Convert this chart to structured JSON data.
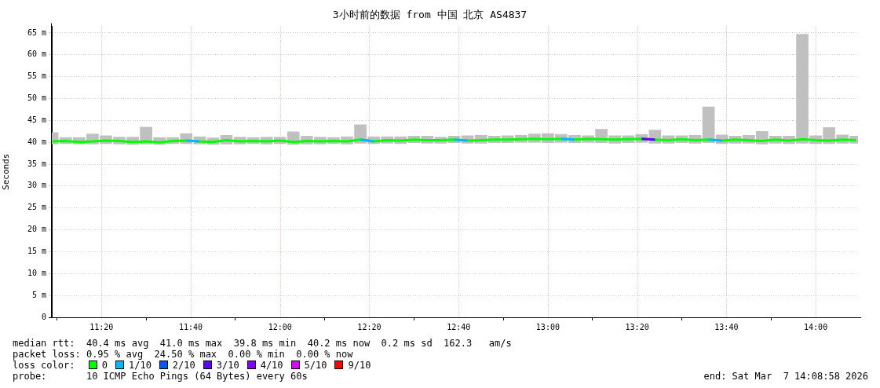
{
  "chart_data": {
    "type": "line",
    "title": "3小时前的数据 from 中国 北京 AS4837",
    "ylabel": "Seconds",
    "xlim": [
      11.148,
      14.158
    ],
    "xticks": [
      {
        "value": 11.3333,
        "label": "11:20"
      },
      {
        "value": 11.6667,
        "label": "11:40"
      },
      {
        "value": 12,
        "label": "12:00"
      },
      {
        "value": 12.3333,
        "label": "12:20"
      },
      {
        "value": 12.6667,
        "label": "12:40"
      },
      {
        "value": 13,
        "label": "13:00"
      },
      {
        "value": 13.3333,
        "label": "13:20"
      },
      {
        "value": 13.6667,
        "label": "13:40"
      },
      {
        "value": 14,
        "label": "14:00"
      }
    ],
    "ylim": [
      0,
      66.5
    ],
    "yticks": [
      {
        "value": 0,
        "label": "0"
      },
      {
        "value": 5,
        "label": "5 m"
      },
      {
        "value": 10,
        "label": "10 m"
      },
      {
        "value": 15,
        "label": "15 m"
      },
      {
        "value": 20,
        "label": "20 m"
      },
      {
        "value": 25,
        "label": "25 m"
      },
      {
        "value": 30,
        "label": "30 m"
      },
      {
        "value": 35,
        "label": "35 m"
      },
      {
        "value": 40,
        "label": "40 m"
      },
      {
        "value": 45,
        "label": "45 m"
      },
      {
        "value": 50,
        "label": "50 m"
      },
      {
        "value": 55,
        "label": "55 m"
      },
      {
        "value": 60,
        "label": "60 m"
      },
      {
        "value": 65,
        "label": "65 m"
      }
    ],
    "x": [
      11.15,
      11.2,
      11.25,
      11.3,
      11.35,
      11.4,
      11.45,
      11.5,
      11.55,
      11.6,
      11.65,
      11.7,
      11.75,
      11.8,
      11.85,
      11.9,
      11.95,
      12,
      12.05,
      12.1,
      12.15,
      12.2,
      12.25,
      12.3,
      12.35,
      12.4,
      12.45,
      12.5,
      12.55,
      12.6,
      12.65,
      12.7,
      12.75,
      12.8,
      12.85,
      12.9,
      12.95,
      13,
      13.05,
      13.1,
      13.15,
      13.2,
      13.25,
      13.3,
      13.35,
      13.4,
      13.45,
      13.5,
      13.55,
      13.6,
      13.65,
      13.7,
      13.75,
      13.8,
      13.85,
      13.9,
      13.95,
      14,
      14.05,
      14.1,
      14.15
    ],
    "grid": true,
    "legend": "bottom",
    "legend_title": "loss color:",
    "line_style": "solid",
    "marker": "none",
    "series": [
      {
        "type": "bar",
        "color": "#c0c0c0",
        "base": [
          39.6,
          39.7,
          39.6,
          39.6,
          39.7,
          39.6,
          39.5,
          39.6,
          39.5,
          39.7,
          39.7,
          39.6,
          39.5,
          39.6,
          39.6,
          39.7,
          39.6,
          39.7,
          39.5,
          39.6,
          39.6,
          39.7,
          39.6,
          39.8,
          39.7,
          39.8,
          39.7,
          39.9,
          39.8,
          39.8,
          39.9,
          39.8,
          39.8,
          39.9,
          39.9,
          40.0,
          40.0,
          39.9,
          40.0,
          39.9,
          40.0,
          39.9,
          39.8,
          39.9,
          40.0,
          39.8,
          39.8,
          39.9,
          39.8,
          39.9,
          39.7,
          39.8,
          39.8,
          39.6,
          39.8,
          39.7,
          39.8,
          39.7,
          39.7,
          39.8,
          39.8
        ],
        "values": [
          2.6,
          1.4,
          1.5,
          2.3,
          1.8,
          1.6,
          1.7,
          3.9,
          1.6,
          1.4,
          2.3,
          1.7,
          1.5,
          2.0,
          1.6,
          1.4,
          1.6,
          1.5,
          2.9,
          1.8,
          1.6,
          1.4,
          1.7,
          4.2,
          1.6,
          1.5,
          1.6,
          1.5,
          1.6,
          1.4,
          1.5,
          1.7,
          1.8,
          1.5,
          1.6,
          1.6,
          1.9,
          2.1,
          1.8,
          1.7,
          1.5,
          3.1,
          1.7,
          1.6,
          1.8,
          3.0,
          1.7,
          1.6,
          1.8,
          8.2,
          2.0,
          1.6,
          1.8,
          2.9,
          1.6,
          1.7,
          24.9,
          1.8,
          3.7,
          1.9,
          1.6
        ]
      },
      {
        "name": "0",
        "color": "#00ff00",
        "values": [
          40.2,
          40.3,
          40.1,
          40.2,
          40.4,
          40.3,
          40.1,
          40.2,
          40.0,
          40.3,
          40.4,
          40.2,
          40.1,
          40.5,
          40.2,
          40.3,
          40.2,
          40.4,
          40.1,
          40.3,
          40.2,
          40.3,
          40.2,
          40.6,
          40.2,
          40.5,
          40.4,
          40.6,
          40.5,
          40.5,
          40.6,
          40.4,
          40.5,
          40.6,
          40.6,
          40.7,
          40.8,
          40.7,
          40.8,
          40.6,
          40.8,
          40.7,
          40.6,
          40.7,
          40.8,
          40.6,
          40.5,
          40.7,
          40.5,
          40.6,
          40.4,
          40.6,
          40.5,
          40.3,
          40.6,
          40.4,
          40.7,
          40.5,
          40.4,
          40.6,
          40.5
        ]
      },
      {
        "name": "1/10",
        "color": "#00b8ff",
        "values": [
          null,
          null,
          null,
          null,
          null,
          null,
          null,
          null,
          null,
          null,
          40.4,
          40.2,
          null,
          null,
          null,
          null,
          null,
          null,
          null,
          null,
          null,
          null,
          null,
          40.6,
          40.2,
          null,
          null,
          null,
          null,
          null,
          40.6,
          40.4,
          null,
          null,
          null,
          null,
          null,
          null,
          40.8,
          40.6,
          null,
          null,
          null,
          null,
          null,
          null,
          null,
          null,
          null,
          40.6,
          40.4,
          null,
          null,
          null,
          null,
          null,
          null,
          null,
          null,
          null,
          null
        ]
      },
      {
        "name": "2/10",
        "color": "#0059ff",
        "values": [
          null,
          null,
          null,
          null,
          null,
          null,
          null,
          null,
          null,
          null,
          null,
          null,
          null,
          null,
          null,
          null,
          null,
          null,
          null,
          null,
          null,
          null,
          null,
          null,
          null,
          null,
          null,
          null,
          null,
          null,
          null,
          null,
          null,
          null,
          null,
          null,
          null,
          null,
          null,
          null,
          null,
          null,
          null,
          null,
          null,
          null,
          null,
          null,
          null,
          null,
          null,
          null,
          null,
          null,
          null,
          null,
          null,
          null,
          null,
          null,
          null
        ]
      },
      {
        "name": "3/10",
        "color": "#5e00ff",
        "values": [
          null,
          null,
          null,
          null,
          null,
          null,
          null,
          null,
          null,
          null,
          null,
          null,
          null,
          null,
          null,
          null,
          null,
          null,
          null,
          null,
          null,
          null,
          null,
          null,
          null,
          null,
          null,
          null,
          null,
          null,
          null,
          null,
          null,
          null,
          null,
          null,
          null,
          null,
          null,
          null,
          null,
          null,
          null,
          null,
          40.8,
          40.6,
          null,
          null,
          null,
          null,
          null,
          null,
          null,
          null,
          null,
          null,
          null,
          null,
          null,
          null,
          null
        ]
      },
      {
        "name": "4/10",
        "color": "#7e00ff",
        "values": [
          null,
          null,
          null,
          null,
          null,
          null,
          null,
          null,
          null,
          null,
          null,
          null,
          null,
          null,
          null,
          null,
          null,
          null,
          null,
          null,
          null,
          null,
          null,
          null,
          null,
          null,
          null,
          null,
          null,
          null,
          null,
          null,
          null,
          null,
          null,
          null,
          null,
          null,
          null,
          null,
          null,
          null,
          null,
          null,
          null,
          null,
          null,
          null,
          null,
          null,
          null,
          null,
          null,
          null,
          null,
          null,
          null,
          null,
          null,
          null,
          null
        ]
      },
      {
        "name": "5/10",
        "color": "#dd00ff",
        "values": [
          null,
          null,
          null,
          null,
          null,
          null,
          null,
          null,
          null,
          null,
          null,
          null,
          null,
          null,
          null,
          null,
          null,
          null,
          null,
          null,
          null,
          null,
          null,
          null,
          null,
          null,
          null,
          null,
          null,
          null,
          null,
          null,
          null,
          null,
          null,
          null,
          null,
          null,
          null,
          null,
          null,
          null,
          null,
          null,
          null,
          null,
          null,
          null,
          null,
          null,
          null,
          null,
          null,
          null,
          null,
          null,
          null,
          null,
          null,
          null,
          null
        ]
      },
      {
        "name": "9/10",
        "color": "#ff0000",
        "values": [
          null,
          null,
          null,
          null,
          null,
          null,
          null,
          null,
          null,
          null,
          null,
          null,
          null,
          null,
          null,
          null,
          null,
          null,
          null,
          null,
          null,
          null,
          null,
          null,
          null,
          null,
          null,
          null,
          null,
          null,
          null,
          null,
          null,
          null,
          null,
          null,
          null,
          null,
          null,
          null,
          null,
          null,
          null,
          null,
          null,
          null,
          null,
          null,
          null,
          null,
          null,
          null,
          null,
          null,
          null,
          null,
          null,
          null,
          null,
          null,
          null
        ]
      }
    ],
    "annotations": [
      "median rtt:  40.4 ms avg  41.0 ms max  39.8 ms min  40.2 ms now  0.2 ms sd  162.3   am/s",
      "packet loss: 0.95 % avg  24.50 % max  0.00 % min  0.00 % now",
      "probe:       10 ICMP Echo Pings (64 Bytes) every 60s",
      "end: Sat Mar  7 14:08:58 2026"
    ]
  }
}
